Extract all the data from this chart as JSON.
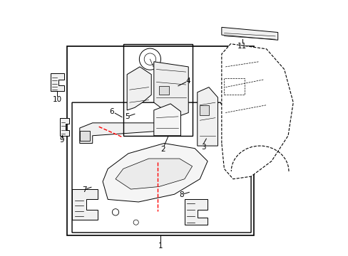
{
  "background_color": "#ffffff",
  "line_color": "#000000",
  "red_dashed_color": "#ff0000",
  "fig_width": 4.89,
  "fig_height": 3.6,
  "dpi": 100
}
